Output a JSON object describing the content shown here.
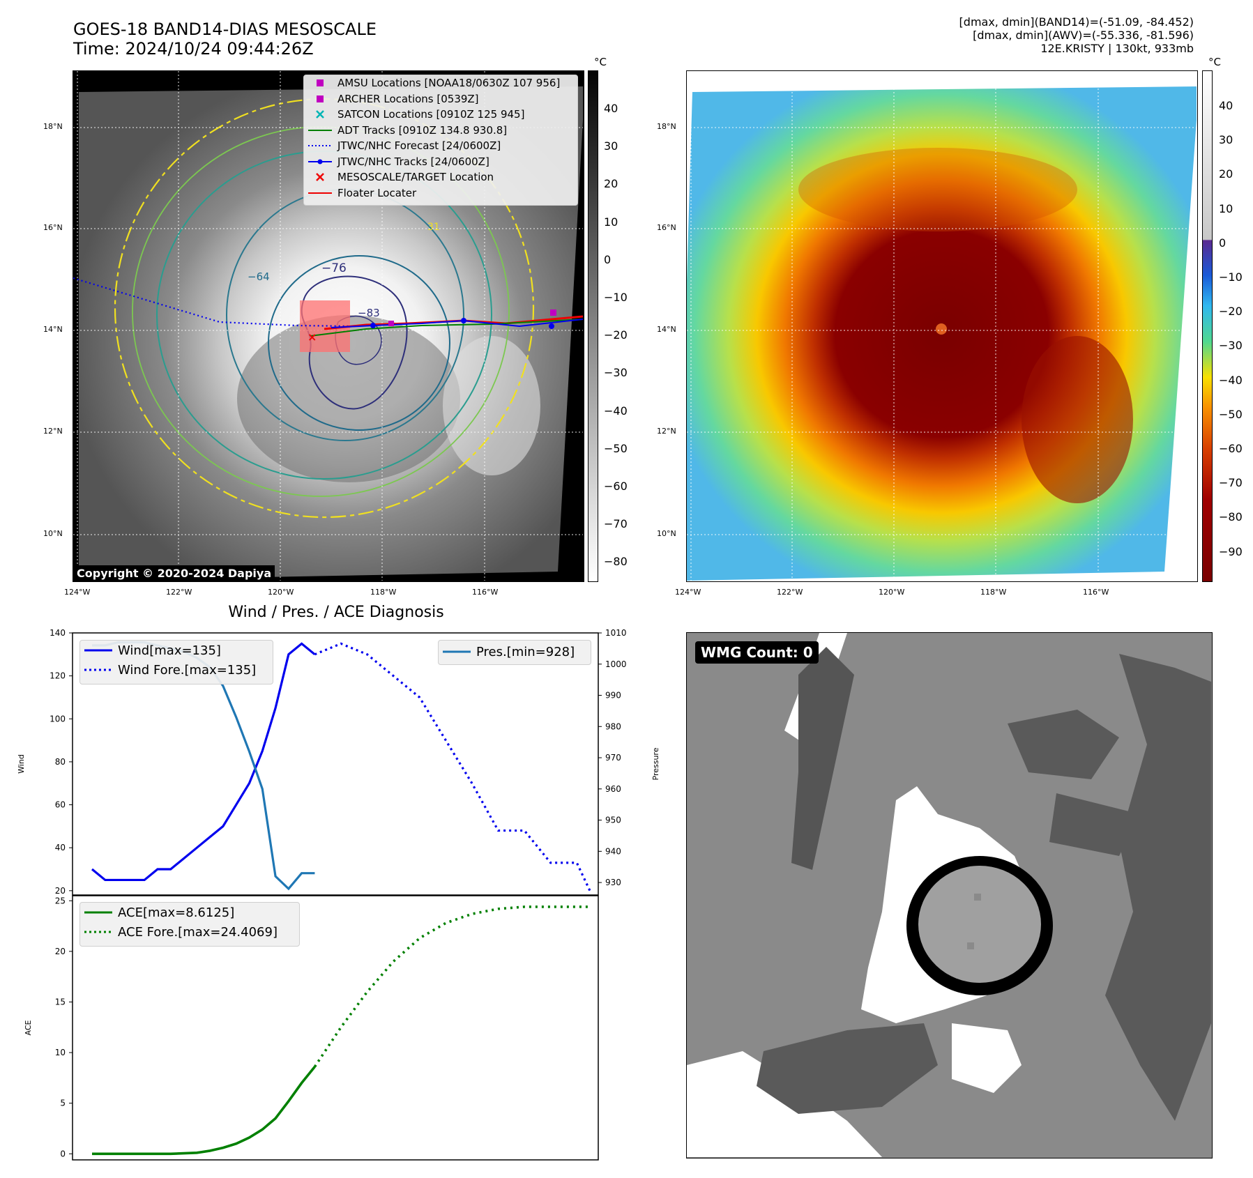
{
  "header": {
    "title_line1": "GOES-18 BAND14-DIAS MESOSCALE",
    "title_line2": "Time: 2024/10/24 09:44:26Z",
    "info_line1": "[dmax, dmin](BAND14)=(-51.09, -84.452)",
    "info_line2": "[dmax, dmin](AWV)=(-55.336, -81.596)",
    "info_line3": "12E.KRISTY | 130kt, 933mb"
  },
  "map": {
    "lat_ticks": [
      "18°N",
      "16°N",
      "14°N",
      "12°N",
      "10°N"
    ],
    "lon_ticks": [
      "124°W",
      "122°W",
      "120°W",
      "118°W",
      "116°W"
    ],
    "contour_labels": [
      "−76",
      "−64",
      "−83",
      "31"
    ],
    "copyright": "Copyright © 2020-2024 Dapiya",
    "legend": [
      {
        "label": "AMSU Locations [NOAA18/0630Z 107 956]",
        "marker": "square",
        "color": "#c000c0"
      },
      {
        "label": "ARCHER Locations [0539Z]",
        "marker": "square",
        "color": "#c000c0"
      },
      {
        "label": "SATCON Locations [0910Z 125 945]",
        "marker": "x",
        "color": "#00b5b5"
      },
      {
        "label": "ADT Tracks [0910Z 134.8 930.8]",
        "marker": "line",
        "color": "#008000"
      },
      {
        "label": "JTWC/NHC Forecast [24/0600Z]",
        "marker": "dotted",
        "color": "#0000ee"
      },
      {
        "label": "JTWC/NHC Tracks [24/0600Z]",
        "marker": "line-dot",
        "color": "#0000ee"
      },
      {
        "label": "MESOSCALE/TARGET Location",
        "marker": "x",
        "color": "#ee0000"
      },
      {
        "label": "Floater Locater",
        "marker": "line",
        "color": "#ee0000"
      }
    ]
  },
  "colorbar_gray": {
    "unit": "°C",
    "ticks": [
      "40",
      "30",
      "20",
      "10",
      "0",
      "−10",
      "−20",
      "−30",
      "−40",
      "−50",
      "−60",
      "−70",
      "−80"
    ]
  },
  "colorbar_color": {
    "unit": "°C",
    "ticks": [
      "40",
      "30",
      "20",
      "10",
      "0",
      "−10",
      "−20",
      "−30",
      "−40",
      "−50",
      "−60",
      "−70",
      "−80",
      "−90"
    ]
  },
  "wmg": {
    "label": "WMG Count: 0"
  },
  "chart_data": [
    {
      "type": "line",
      "title": "Wind / Pres. / ACE Diagnosis",
      "ylabel": "Wind",
      "ylabel_right": "Pressure",
      "ylim": [
        18,
        140
      ],
      "ylim_right": [
        926,
        1010
      ],
      "y_ticks": [
        "140",
        "120",
        "100",
        "80",
        "60",
        "40",
        "20"
      ],
      "y_ticks_right": [
        "1010",
        "1000",
        "990",
        "980",
        "970",
        "960",
        "950",
        "940",
        "930"
      ],
      "x_index": [
        0,
        38
      ],
      "legend_left": [
        "Wind[max=135]",
        "Wind Fore.[max=135]"
      ],
      "legend_right": [
        "Pres.[min=928]"
      ],
      "series": [
        {
          "name": "Wind[max=135]",
          "color": "#0000ee",
          "style": "solid",
          "x": [
            0,
            1,
            2,
            3,
            4,
            5,
            6,
            7,
            8,
            9,
            10,
            11,
            12,
            13,
            14,
            15,
            16,
            17
          ],
          "values": [
            30,
            25,
            25,
            25,
            25,
            30,
            30,
            35,
            40,
            45,
            50,
            60,
            70,
            85,
            105,
            130,
            135,
            130
          ]
        },
        {
          "name": "Wind Fore.[max=135]",
          "color": "#0000ee",
          "style": "dotted",
          "x": [
            17,
            19,
            21,
            23,
            25,
            27,
            29,
            31,
            33,
            35,
            37,
            38
          ],
          "values": [
            130,
            135,
            130,
            120,
            110,
            90,
            70,
            48,
            48,
            33,
            33,
            20
          ]
        },
        {
          "name": "Pres.[min=928]",
          "color": "#1f77b4",
          "style": "solid",
          "axis": "right",
          "x": [
            0,
            1,
            2,
            3,
            4,
            5,
            6,
            7,
            8,
            9,
            10,
            11,
            12,
            13,
            14,
            15,
            16,
            17
          ],
          "values": [
            1006,
            1006,
            1007,
            1007,
            1007,
            1006,
            1005,
            1004,
            1002,
            999,
            993,
            983,
            972,
            960,
            932,
            928,
            933,
            933
          ]
        }
      ]
    },
    {
      "type": "line",
      "ylabel": "ACE",
      "ylim": [
        -0.6,
        25.5
      ],
      "y_ticks": [
        "25",
        "20",
        "15",
        "10",
        "5",
        "0"
      ],
      "x_index": [
        0,
        38
      ],
      "legend": [
        "ACE[max=8.6125]",
        "ACE Fore.[max=24.4069]"
      ],
      "series": [
        {
          "name": "ACE[max=8.6125]",
          "color": "#008000",
          "style": "solid",
          "x": [
            0,
            2,
            4,
            6,
            8,
            9,
            10,
            11,
            12,
            13,
            14,
            15,
            16,
            17
          ],
          "values": [
            0,
            0,
            0,
            0,
            0.1,
            0.3,
            0.6,
            1.0,
            1.6,
            2.4,
            3.5,
            5.2,
            7.0,
            8.6
          ]
        },
        {
          "name": "ACE Fore.[max=24.4069]",
          "color": "#008000",
          "style": "dotted",
          "x": [
            17,
            19,
            21,
            23,
            25,
            27,
            29,
            31,
            33,
            35,
            38
          ],
          "values": [
            8.6,
            12.5,
            16.0,
            19.0,
            21.3,
            22.8,
            23.7,
            24.2,
            24.4,
            24.4,
            24.4
          ]
        }
      ]
    }
  ]
}
